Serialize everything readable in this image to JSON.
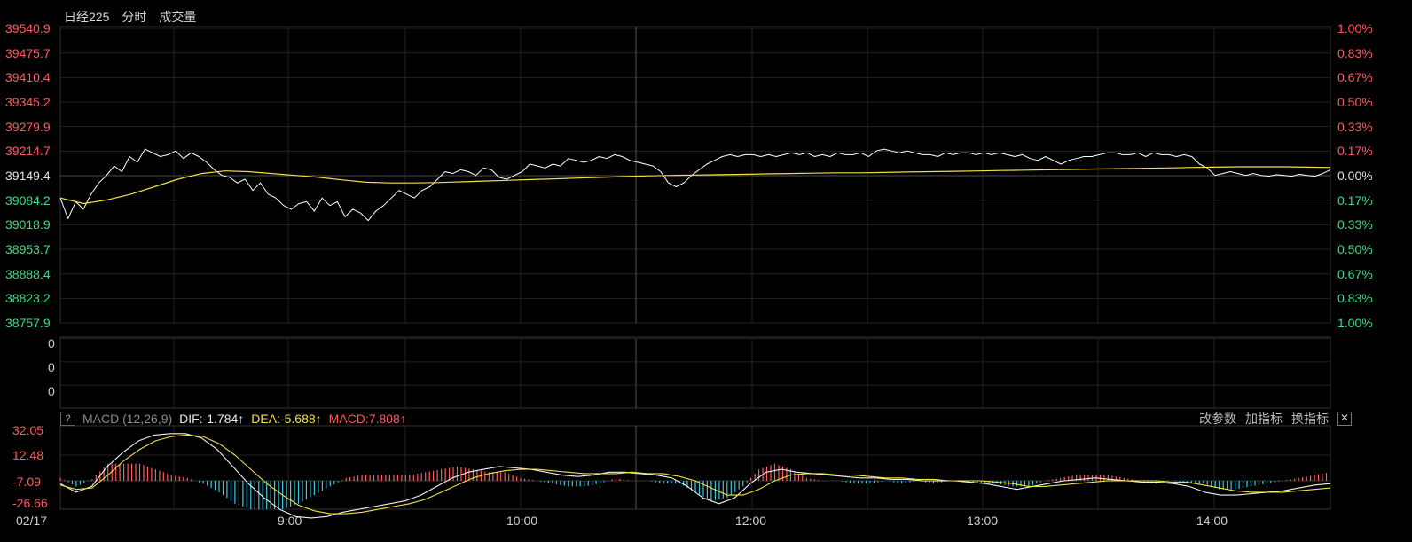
{
  "header": {
    "index_name": "日经225",
    "tab_intraday": "分时",
    "tab_volume": "成交量"
  },
  "colors": {
    "up": "#ff5a5a",
    "down": "#3ddc84",
    "neutral": "#e0e0e0",
    "price_line": "#ffffff",
    "avg_line": "#f0e040",
    "macd_up": "#ff5a5a",
    "macd_down": "#3cc8e0"
  },
  "price_axis": {
    "left_labels": [
      "39540.9",
      "39475.7",
      "39410.4",
      "39345.2",
      "39279.9",
      "39214.7",
      "39149.4",
      "39084.2",
      "39018.9",
      "38953.7",
      "38888.4",
      "38823.2",
      "38757.9"
    ],
    "right_labels": [
      "1.00%",
      "0.83%",
      "0.67%",
      "0.50%",
      "0.33%",
      "0.17%",
      "0.00%",
      "0.17%",
      "0.33%",
      "0.50%",
      "0.67%",
      "0.83%",
      "1.00%"
    ]
  },
  "volume_axis": {
    "labels": [
      "0",
      "0",
      "0"
    ]
  },
  "macd": {
    "label": "MACD (12,26,9)",
    "help": "?",
    "dif_text": "DIF:-1.784↑",
    "dea_text": "DEA:-5.688↑",
    "macd_text": "MACD:7.808↑",
    "y_labels": [
      "32.05",
      "12.48",
      "-7.09",
      "-26.66"
    ],
    "actions": [
      "改参数",
      "加指标",
      "换指标"
    ],
    "close": "✕"
  },
  "x_axis": {
    "labels": [
      "02/17",
      "9:00",
      "10:00",
      "12:00",
      "13:00",
      "14:00"
    ]
  },
  "chart_data": [
    {
      "type": "line",
      "name": "intraday-price",
      "ylim": [
        38757.9,
        39540.9
      ],
      "reference": 39149.4,
      "series": [
        {
          "values": [
            39090,
            39035,
            39080,
            39060,
            39100,
            39130,
            39150,
            39175,
            39160,
            39200,
            39185,
            39220,
            39210,
            39200,
            39205,
            39215,
            39195,
            39210,
            39200,
            39185,
            39165,
            39150,
            39145,
            39130,
            39140,
            39110,
            39130,
            39100,
            39090,
            39070,
            39060,
            39075,
            39080,
            39055,
            39090,
            39070,
            39080,
            39040,
            39060,
            39050,
            39030,
            39055,
            39070,
            39090,
            39110,
            39100,
            39090,
            39110,
            39120,
            39140,
            39160,
            39155,
            39165,
            39160,
            39150,
            39170,
            39165,
            39145,
            39140,
            39150,
            39160,
            39180,
            39175,
            39170,
            39180,
            39175,
            39195,
            39190,
            39185,
            39190,
            39200,
            39195,
            39205,
            39200,
            39190,
            39185,
            39180,
            39175,
            39160,
            39130,
            39120,
            39130,
            39150,
            39165,
            39180,
            39190,
            39200,
            39205,
            39200,
            39205,
            39205,
            39200,
            39205,
            39200,
            39205,
            39210,
            39205,
            39210,
            39200,
            39205,
            39200,
            39210,
            39205,
            39205,
            39210,
            39200,
            39215,
            39220,
            39215,
            39210,
            39215,
            39210,
            39205,
            39205,
            39200,
            39210,
            39205,
            39210,
            39210,
            39205,
            39210,
            39205,
            39210,
            39205,
            39200,
            39205,
            39195,
            39190,
            39200,
            39190,
            39180,
            39190,
            39195,
            39200,
            39200,
            39205,
            39210,
            39210,
            39205,
            39205,
            39210,
            39200,
            39210,
            39205,
            39205,
            39200,
            39205,
            39200,
            39180,
            39170,
            39150,
            39155,
            39160,
            39155,
            39150,
            39155,
            39150,
            39148,
            39152,
            39150,
            39148,
            39153,
            39150,
            39148,
            39155,
            39165
          ]
        },
        {
          "values": [
            39090,
            39075,
            39085,
            39100,
            39120,
            39140,
            39155,
            39162,
            39160,
            39155,
            39150,
            39145,
            39138,
            39132,
            39130,
            39130,
            39131,
            39133,
            39135,
            39137,
            39139,
            39141,
            39143,
            39145,
            39147,
            39149,
            39150,
            39151,
            39152,
            39153,
            39154,
            39155,
            39156,
            39157,
            39157,
            39158,
            39159,
            39160,
            39161,
            39162,
            39163,
            39164,
            39165,
            39166,
            39167,
            39168,
            39169,
            39170,
            39171,
            39172,
            39173,
            39173,
            39173,
            39172,
            39171
          ]
        }
      ]
    },
    {
      "type": "bar",
      "name": "volume",
      "series": [
        {
          "values": []
        }
      ]
    },
    {
      "type": "line",
      "name": "macd",
      "ylim": [
        -30,
        36
      ],
      "series": [
        {
          "name": "DIF",
          "values": [
            -2,
            -8,
            -4,
            10,
            20,
            28,
            32,
            33,
            33,
            30,
            22,
            10,
            -2,
            -12,
            -20,
            -25,
            -26,
            -25,
            -22,
            -20,
            -18,
            -16,
            -14,
            -10,
            -4,
            2,
            6,
            8,
            10,
            9,
            8,
            6,
            4,
            3,
            4,
            6,
            6,
            5,
            4,
            2,
            -4,
            -12,
            -16,
            -12,
            -2,
            6,
            8,
            6,
            5,
            4,
            3,
            2,
            2,
            1,
            1,
            0,
            0,
            0,
            -1,
            -2,
            -4,
            -6,
            -4,
            -2,
            0,
            1,
            2,
            1,
            0,
            -1,
            -1,
            -2,
            -4,
            -8,
            -10,
            -10,
            -9,
            -8,
            -7,
            -5,
            -3,
            -2
          ]
        },
        {
          "name": "DEA",
          "values": [
            -3,
            -6,
            -5,
            4,
            14,
            22,
            28,
            31,
            32,
            31,
            26,
            18,
            8,
            -2,
            -10,
            -17,
            -21,
            -23,
            -23,
            -22,
            -20,
            -18,
            -16,
            -13,
            -8,
            -3,
            2,
            5,
            7,
            8,
            8,
            7,
            6,
            5,
            5,
            5,
            6,
            5,
            5,
            3,
            0,
            -5,
            -10,
            -10,
            -6,
            0,
            4,
            5,
            5,
            4,
            4,
            3,
            2,
            2,
            1,
            1,
            0,
            0,
            0,
            -1,
            -2,
            -4,
            -4,
            -3,
            -2,
            -1,
            0,
            0,
            0,
            0,
            -1,
            -1,
            -3,
            -5,
            -7,
            -8,
            -8,
            -8,
            -7,
            -6,
            -5
          ]
        },
        {
          "name": "MACD",
          "values": [
            2,
            -4,
            1,
            12,
            12,
            12,
            8,
            4,
            2,
            -2,
            -8,
            -16,
            -20,
            -20,
            -20,
            -16,
            -10,
            -4,
            2,
            4,
            4,
            4,
            4,
            6,
            8,
            10,
            8,
            6,
            6,
            2,
            0,
            -2,
            -4,
            -4,
            -2,
            2,
            0,
            0,
            -2,
            -2,
            -8,
            -14,
            -12,
            -4,
            8,
            12,
            8,
            2,
            0,
            0,
            -2,
            -2,
            0,
            -2,
            0,
            -2,
            0,
            0,
            -2,
            -2,
            -4,
            -4,
            0,
            2,
            4,
            4,
            4,
            2,
            0,
            -2,
            0,
            -2,
            -2,
            -6,
            -6,
            -4,
            -2,
            0,
            2,
            4,
            6
          ]
        }
      ]
    }
  ]
}
